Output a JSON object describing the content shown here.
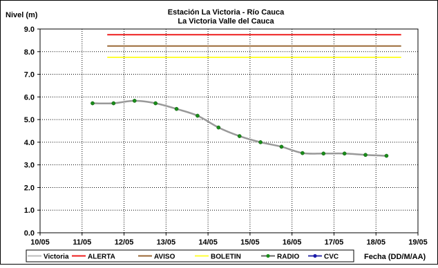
{
  "chart_data": {
    "type": "line",
    "title": "Estación La Victoria - Río Cauca",
    "subtitle": "La Victoria Valle del Cauca",
    "ylabel": "Nivel (m)",
    "xlabel": "Fecha (DD/M/AA)",
    "ylim": [
      0,
      9
    ],
    "yticks": [
      "0.0",
      "1.0",
      "2.0",
      "3.0",
      "4.0",
      "5.0",
      "6.0",
      "7.0",
      "8.0",
      "9.0"
    ],
    "xlim": [
      0,
      9
    ],
    "xticks": [
      "10/05",
      "11/05",
      "12/05",
      "13/05",
      "14/05",
      "15/05",
      "16/05",
      "17/05",
      "18/05",
      "19/05"
    ],
    "grid": true,
    "legend_position": "bottom",
    "thresholds": [
      {
        "name": "ALERTA",
        "value": 8.75,
        "x_start": 1.6,
        "x_end": 8.6,
        "color": "#ee1c1c"
      },
      {
        "name": "AVISO",
        "value": 8.25,
        "x_start": 1.6,
        "x_end": 8.6,
        "color": "#996633"
      },
      {
        "name": "BOLETIN",
        "value": 7.75,
        "x_start": 1.6,
        "x_end": 8.6,
        "color": "#ffff33"
      }
    ],
    "series": [
      {
        "name": "Victoria",
        "color": "#999999",
        "x": [
          1.25,
          1.75,
          2.25,
          2.75,
          3.25,
          3.75,
          4.25,
          4.75,
          5.25,
          5.75,
          6.25,
          6.75,
          7.25,
          7.75,
          8.25
        ],
        "values": [
          5.72,
          5.72,
          5.83,
          5.72,
          5.47,
          5.17,
          4.65,
          4.27,
          4.0,
          3.8,
          3.52,
          3.5,
          3.5,
          3.44,
          3.4
        ]
      }
    ],
    "legend": [
      {
        "name": "Victoria",
        "color": "#bbbbbb",
        "marker": "none"
      },
      {
        "name": "ALERTA",
        "color": "#ee1c1c",
        "marker": "none"
      },
      {
        "name": "AVISO",
        "color": "#996633",
        "marker": "none"
      },
      {
        "name": "BOLETIN",
        "color": "#ffff33",
        "marker": "none"
      },
      {
        "name": "RADIO",
        "color": "#666666",
        "marker": "dot",
        "marker_color": "#1a8c1a"
      },
      {
        "name": "CVC",
        "color": "#3333aa",
        "marker": "dot",
        "marker_color": "#1a1aaa"
      }
    ]
  }
}
